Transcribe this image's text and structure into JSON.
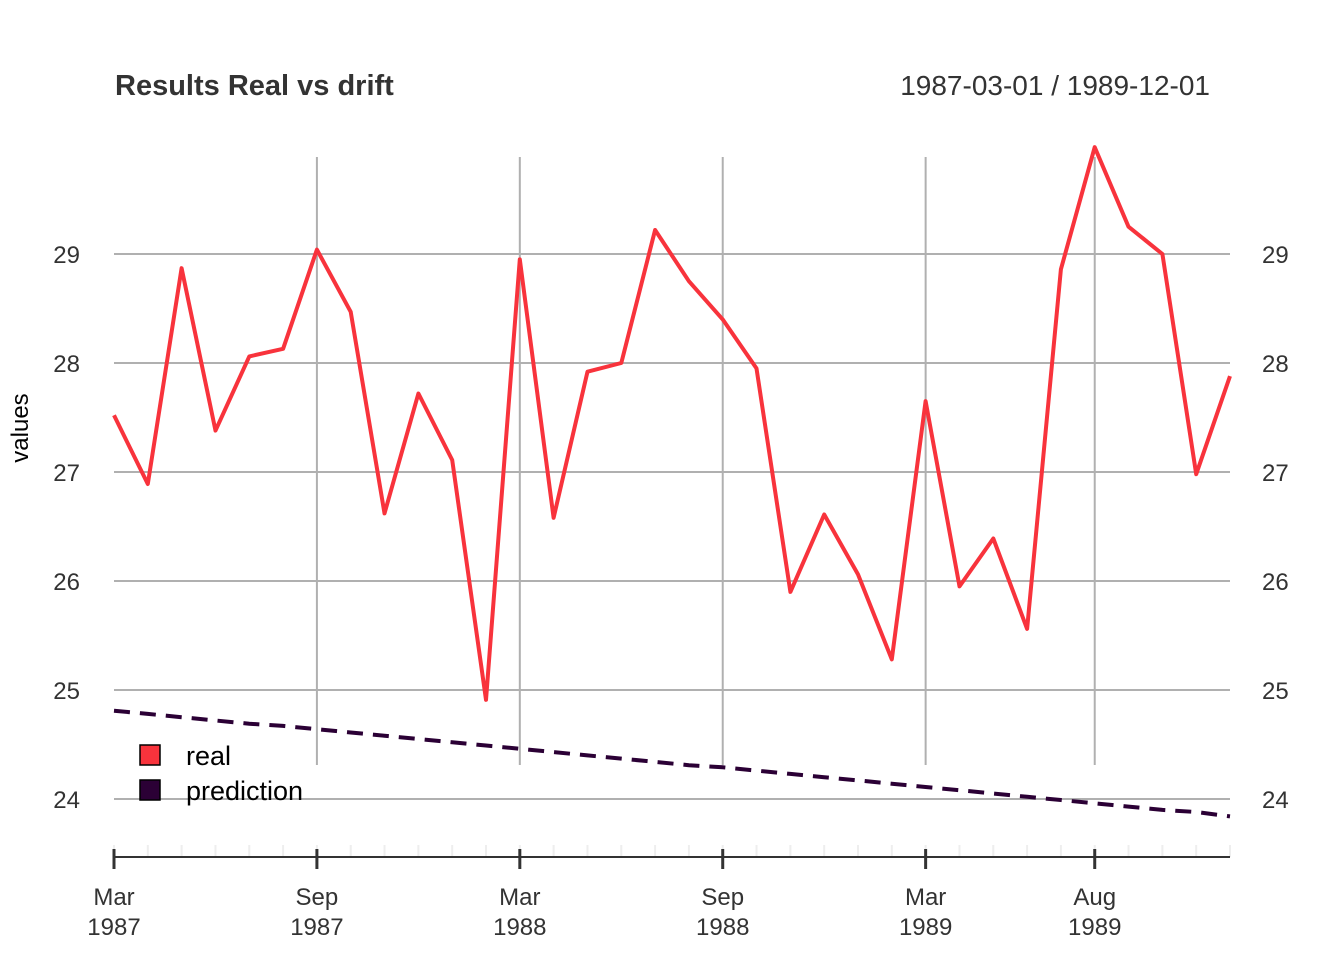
{
  "chart_data": {
    "type": "line",
    "title": "Results Real vs drift",
    "date_range_label": "1987-03-01 / 1989-12-01",
    "ylabel": "values",
    "xlabel": "",
    "x": [
      "1987-03-01",
      "1987-04-01",
      "1987-05-01",
      "1987-06-01",
      "1987-07-01",
      "1987-08-01",
      "1987-09-01",
      "1987-10-01",
      "1987-11-01",
      "1987-12-01",
      "1988-01-01",
      "1988-02-01",
      "1988-03-01",
      "1988-04-01",
      "1988-05-01",
      "1988-06-01",
      "1988-07-01",
      "1988-08-01",
      "1988-09-01",
      "1988-10-01",
      "1988-11-01",
      "1988-12-01",
      "1989-01-01",
      "1989-02-01",
      "1989-03-01",
      "1989-04-01",
      "1989-05-01",
      "1989-06-01",
      "1989-07-01",
      "1989-08-01",
      "1989-09-01",
      "1989-10-01",
      "1989-11-01",
      "1989-12-01"
    ],
    "series": [
      {
        "name": "real",
        "color": "#f8333c",
        "dash": "solid",
        "values": [
          27.52,
          26.89,
          28.87,
          27.38,
          28.06,
          28.13,
          29.04,
          28.47,
          26.62,
          27.72,
          27.11,
          24.91,
          28.95,
          26.58,
          27.92,
          28.0,
          29.22,
          28.75,
          28.4,
          27.95,
          25.9,
          26.61,
          26.06,
          25.28,
          27.65,
          25.95,
          26.39,
          25.56,
          28.86,
          29.98,
          29.25,
          29.0,
          26.98,
          27.88
        ]
      },
      {
        "name": "prediction",
        "color": "#2b0035",
        "dash": "dashed",
        "values": [
          24.81,
          24.78,
          24.75,
          24.72,
          24.69,
          24.67,
          24.64,
          24.61,
          24.58,
          24.55,
          24.52,
          24.49,
          24.46,
          24.43,
          24.4,
          24.37,
          24.34,
          24.31,
          24.29,
          24.26,
          24.23,
          24.2,
          24.17,
          24.14,
          24.11,
          24.08,
          24.05,
          24.02,
          23.99,
          23.96,
          23.93,
          23.9,
          23.88,
          23.84
        ]
      }
    ],
    "y_ticks": [
      "24",
      "25",
      "26",
      "27",
      "28",
      "29"
    ],
    "ylim": [
      23.55,
      30.0
    ],
    "x_ticks": [
      {
        "month": "Mar",
        "year": "1987",
        "date": "1987-03-01"
      },
      {
        "month": "Sep",
        "year": "1987",
        "date": "1987-09-01"
      },
      {
        "month": "Mar",
        "year": "1988",
        "date": "1988-03-01"
      },
      {
        "month": "Sep",
        "year": "1988",
        "date": "1988-09-01"
      },
      {
        "month": "Mar",
        "year": "1989",
        "date": "1989-03-01"
      },
      {
        "month": "Aug",
        "year": "1989",
        "date": "1989-08-01"
      }
    ],
    "grid": true,
    "legend_position": "bottom-left"
  }
}
